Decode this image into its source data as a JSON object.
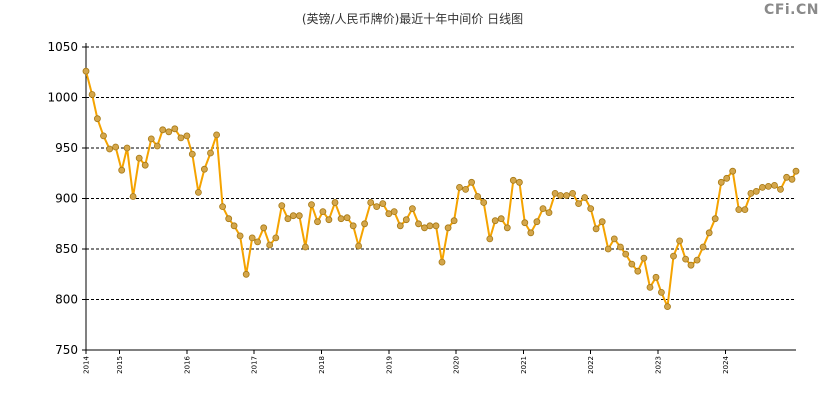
{
  "header": {
    "title": "(英镑/人民币牌价)最近十年中间价 日线图",
    "logo": "CFi.CN"
  },
  "colors": {
    "line": "#f5a300",
    "marker_fill": "#d4a64b",
    "marker_stroke": "#a77914",
    "grid": "#000000",
    "axis": "#000000"
  },
  "chart_data": {
    "type": "line",
    "title": "(英镑/人民币牌价)最近十年中间价 日线图",
    "xlabel": "",
    "ylabel": "",
    "ylim": [
      750,
      1050
    ],
    "yticks": [
      750,
      800,
      850,
      900,
      950,
      1000,
      1050
    ],
    "xlim": [
      2014.0,
      2024.55
    ],
    "xticks": [
      {
        "value": 2014.0,
        "label": "2014"
      },
      {
        "value": 2014.5,
        "label": "2015"
      },
      {
        "value": 2015.5,
        "label": "2016"
      },
      {
        "value": 2016.5,
        "label": "2017"
      },
      {
        "value": 2017.5,
        "label": "2018"
      },
      {
        "value": 2018.5,
        "label": "2019"
      },
      {
        "value": 2019.5,
        "label": "2020"
      },
      {
        "value": 2020.5,
        "label": "2021"
      },
      {
        "value": 2021.5,
        "label": "2022"
      },
      {
        "value": 2022.5,
        "label": "2023"
      },
      {
        "value": 2023.5,
        "label": "2024"
      }
    ],
    "grid": true,
    "legend": "none",
    "series": [
      {
        "values": [
          [
            2014.0,
            1026
          ],
          [
            2014.09,
            1003
          ],
          [
            2014.17,
            979
          ],
          [
            2014.26,
            962
          ],
          [
            2014.35,
            949
          ],
          [
            2014.44,
            951
          ],
          [
            2014.53,
            928
          ],
          [
            2014.61,
            950
          ],
          [
            2014.7,
            902
          ],
          [
            2014.79,
            940
          ],
          [
            2014.88,
            933
          ],
          [
            2014.97,
            959
          ],
          [
            2015.06,
            952
          ],
          [
            2015.14,
            968
          ],
          [
            2015.23,
            966
          ],
          [
            2015.32,
            969
          ],
          [
            2015.41,
            960
          ],
          [
            2015.5,
            962
          ],
          [
            2015.58,
            944
          ],
          [
            2015.67,
            906
          ],
          [
            2015.76,
            929
          ],
          [
            2015.85,
            945
          ],
          [
            2015.94,
            963
          ],
          [
            2016.03,
            892
          ],
          [
            2016.12,
            880
          ],
          [
            2016.2,
            873
          ],
          [
            2016.29,
            863
          ],
          [
            2016.38,
            825
          ],
          [
            2016.47,
            861
          ],
          [
            2016.55,
            857
          ],
          [
            2016.64,
            871
          ],
          [
            2016.73,
            854
          ],
          [
            2016.82,
            861
          ],
          [
            2016.91,
            893
          ],
          [
            2017.0,
            880
          ],
          [
            2017.08,
            883
          ],
          [
            2017.17,
            883
          ],
          [
            2017.26,
            852
          ],
          [
            2017.35,
            894
          ],
          [
            2017.44,
            877
          ],
          [
            2017.52,
            887
          ],
          [
            2017.61,
            879
          ],
          [
            2017.7,
            896
          ],
          [
            2017.79,
            880
          ],
          [
            2017.88,
            881
          ],
          [
            2017.97,
            873
          ],
          [
            2018.05,
            853
          ],
          [
            2018.14,
            875
          ],
          [
            2018.23,
            896
          ],
          [
            2018.32,
            892
          ],
          [
            2018.41,
            895
          ],
          [
            2018.5,
            885
          ],
          [
            2018.58,
            887
          ],
          [
            2018.67,
            873
          ],
          [
            2018.76,
            879
          ],
          [
            2018.85,
            890
          ],
          [
            2018.94,
            875
          ],
          [
            2019.03,
            871
          ],
          [
            2019.11,
            873
          ],
          [
            2019.2,
            873
          ],
          [
            2019.29,
            837
          ],
          [
            2019.38,
            871
          ],
          [
            2019.47,
            878
          ],
          [
            2019.55,
            911
          ],
          [
            2019.64,
            909
          ],
          [
            2019.73,
            916
          ],
          [
            2019.82,
            902
          ],
          [
            2019.91,
            896
          ],
          [
            2020.0,
            860
          ],
          [
            2020.08,
            878
          ],
          [
            2020.17,
            880
          ],
          [
            2020.26,
            871
          ],
          [
            2020.35,
            918
          ],
          [
            2020.44,
            916
          ],
          [
            2020.52,
            876
          ],
          [
            2020.61,
            866
          ],
          [
            2020.7,
            877
          ],
          [
            2020.79,
            890
          ],
          [
            2020.88,
            886
          ],
          [
            2020.97,
            905
          ],
          [
            2021.05,
            903
          ],
          [
            2021.14,
            903
          ],
          [
            2021.23,
            905
          ],
          [
            2021.32,
            895
          ],
          [
            2021.41,
            901
          ],
          [
            2021.5,
            890
          ],
          [
            2021.58,
            870
          ],
          [
            2021.67,
            877
          ],
          [
            2021.76,
            850
          ],
          [
            2021.85,
            860
          ],
          [
            2021.94,
            852
          ],
          [
            2022.02,
            845
          ],
          [
            2022.11,
            835
          ],
          [
            2022.2,
            828
          ],
          [
            2022.29,
            841
          ],
          [
            2022.38,
            812
          ],
          [
            2022.47,
            822
          ],
          [
            2022.55,
            807
          ],
          [
            2022.64,
            793
          ],
          [
            2022.73,
            843
          ],
          [
            2022.82,
            858
          ],
          [
            2022.91,
            840
          ],
          [
            2022.99,
            834
          ],
          [
            2023.08,
            839
          ],
          [
            2023.17,
            852
          ],
          [
            2023.26,
            866
          ],
          [
            2023.35,
            880
          ],
          [
            2023.44,
            916
          ],
          [
            2023.52,
            920
          ],
          [
            2023.61,
            927
          ],
          [
            2023.7,
            889
          ],
          [
            2023.79,
            889
          ],
          [
            2023.88,
            905
          ],
          [
            2023.96,
            907
          ],
          [
            2024.05,
            911
          ],
          [
            2024.14,
            912
          ],
          [
            2024.23,
            913
          ],
          [
            2024.32,
            909
          ],
          [
            2024.41,
            921
          ],
          [
            2024.49,
            919
          ],
          [
            2024.55,
            927
          ]
        ]
      }
    ]
  }
}
